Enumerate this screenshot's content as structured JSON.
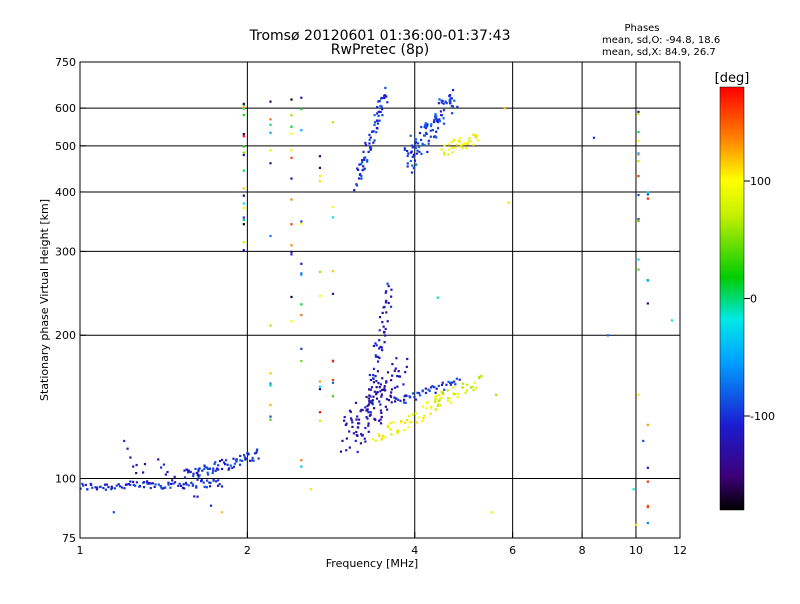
{
  "chart_data": {
    "type": "scatter",
    "title": "Tromsø 20120601 01:36:00-01:37:43",
    "subtitle": "RwPretec (8p)",
    "xlabel": "Frequency [MHz]",
    "ylabel": "Stationary phase Virtual Height [km]",
    "x_scale": "log",
    "y_scale": "log",
    "xlim": [
      1,
      12
    ],
    "ylim": [
      75,
      750
    ],
    "x_ticks": [
      1,
      2,
      4,
      6,
      8,
      10,
      12
    ],
    "x_tick_labels": [
      "1",
      "2",
      "4",
      "6",
      "8",
      "10",
      "12"
    ],
    "y_ticks": [
      75,
      100,
      200,
      300,
      400,
      500,
      600,
      750
    ],
    "y_tick_labels": [
      "75",
      "100",
      "200",
      "300",
      "400",
      "500",
      "600",
      "750"
    ],
    "grid_x": [
      2,
      4,
      6,
      8,
      10
    ],
    "grid_y": [
      100,
      200,
      300,
      400,
      500,
      600
    ],
    "grid": true,
    "stats": {
      "heading": "Phases",
      "line1": "mean, sd,O: -94.8, 18.6",
      "line2": "mean, sd,X:  84.9, 26.7"
    },
    "colorbar": {
      "label": "[deg]",
      "min": -180,
      "max": 180,
      "ticks": [
        100,
        0,
        -100
      ],
      "tick_labels": [
        "100",
        "0",
        "-100"
      ],
      "colormap": "rainbow"
    },
    "traces": [
      {
        "x_start": 1.0,
        "x_end": 1.8,
        "y_start": 96,
        "y_end": 98,
        "count": 90,
        "phase": -105,
        "spread": 0.02
      },
      {
        "x_start": 1.55,
        "x_end": 2.1,
        "y_start": 102,
        "y_end": 112,
        "count": 70,
        "phase": -100,
        "spread": 0.03
      },
      {
        "x_start": 1.2,
        "x_end": 1.7,
        "y_start": 110,
        "y_end": 95,
        "count": 25,
        "phase": -120,
        "spread": 0.08
      },
      {
        "x_start": 3.0,
        "x_end": 3.8,
        "y_start": 122,
        "y_end": 165,
        "count": 120,
        "phase": -125,
        "spread": 0.1
      },
      {
        "x_start": 3.3,
        "x_end": 3.6,
        "y_start": 140,
        "y_end": 250,
        "count": 60,
        "phase": -115,
        "spread": 0.06
      },
      {
        "x_start": 3.4,
        "x_end": 4.6,
        "y_start": 120,
        "y_end": 150,
        "count": 55,
        "phase": 95,
        "spread": 0.04
      },
      {
        "x_start": 4.3,
        "x_end": 5.3,
        "y_start": 145,
        "y_end": 160,
        "count": 30,
        "phase": 75,
        "spread": 0.03
      },
      {
        "x_start": 3.7,
        "x_end": 4.8,
        "y_start": 145,
        "y_end": 160,
        "count": 40,
        "phase": -100,
        "spread": 0.02
      },
      {
        "x_start": 3.15,
        "x_end": 3.55,
        "y_start": 420,
        "y_end": 650,
        "count": 70,
        "phase": -100,
        "spread": 0.04
      },
      {
        "x_start": 3.85,
        "x_end": 4.7,
        "y_start": 460,
        "y_end": 640,
        "count": 110,
        "phase": -95,
        "spread": 0.07
      },
      {
        "x_start": 4.5,
        "x_end": 5.2,
        "y_start": 490,
        "y_end": 520,
        "count": 35,
        "phase": 95,
        "spread": 0.03
      }
    ],
    "points": [
      {
        "x": 8.4,
        "y": 520,
        "phase": -100
      },
      {
        "x": 8.9,
        "y": 200,
        "phase": -80
      },
      {
        "x": 10.1,
        "y": 150,
        "phase": 90
      },
      {
        "x": 10.3,
        "y": 120,
        "phase": -90
      },
      {
        "x": 9.9,
        "y": 95,
        "phase": -20
      },
      {
        "x": 10.0,
        "y": 80,
        "phase": 110
      },
      {
        "x": 11.6,
        "y": 215,
        "phase": -20
      },
      {
        "x": 1.2,
        "y": 120,
        "phase": -100
      },
      {
        "x": 1.15,
        "y": 85,
        "phase": -90
      },
      {
        "x": 1.8,
        "y": 85,
        "phase": 120
      },
      {
        "x": 2.6,
        "y": 95,
        "phase": 110
      },
      {
        "x": 2.7,
        "y": 160,
        "phase": 130
      },
      {
        "x": 5.6,
        "y": 150,
        "phase": 60
      },
      {
        "x": 5.8,
        "y": 600,
        "phase": 120
      },
      {
        "x": 5.9,
        "y": 380,
        "phase": 110
      },
      {
        "x": 5.5,
        "y": 85,
        "phase": 90
      },
      {
        "x": 4.4,
        "y": 240,
        "phase": -10
      }
    ],
    "columns": [
      {
        "x": 1.97,
        "y_min": 300,
        "y_max": 620,
        "count": 22
      },
      {
        "x": 2.2,
        "y_min": 110,
        "y_max": 620,
        "count": 14
      },
      {
        "x": 2.4,
        "y_min": 200,
        "y_max": 680,
        "count": 14
      },
      {
        "x": 2.5,
        "y_min": 100,
        "y_max": 680,
        "count": 14
      },
      {
        "x": 2.7,
        "y_min": 130,
        "y_max": 620,
        "count": 10
      },
      {
        "x": 2.85,
        "y_min": 140,
        "y_max": 600,
        "count": 10
      },
      {
        "x": 10.1,
        "y_min": 260,
        "y_max": 600,
        "count": 14
      },
      {
        "x": 10.5,
        "y_min": 80,
        "y_max": 600,
        "count": 12
      }
    ]
  }
}
